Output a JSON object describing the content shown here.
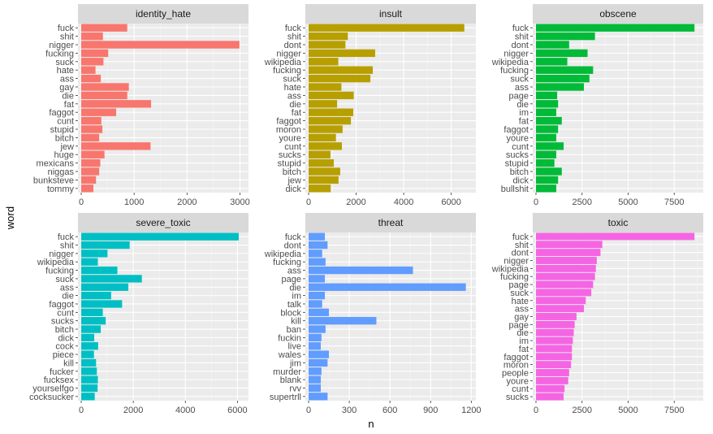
{
  "chart_data": {
    "type": "bar",
    "orientation": "horizontal",
    "xlabel": "n",
    "ylabel": "word",
    "panel_background": "#ebebeb",
    "strip_background": "#d9d9d9",
    "grid": "on",
    "panels": [
      {
        "facet": "identity_hate",
        "color": "#F8766D",
        "xlim": [
          0,
          3100
        ],
        "xticks": [
          0,
          1000,
          2000,
          3000
        ],
        "categories": [
          "fuck",
          "shit",
          "nigger",
          "fucking",
          "suck",
          "hate",
          "ass",
          "gay",
          "die",
          "fat",
          "faggot",
          "cunt",
          "stupid",
          "bitch",
          "jew",
          "huge",
          "mexicans",
          "niggas",
          "bunksteve",
          "tommy"
        ],
        "values": [
          870,
          410,
          2990,
          510,
          420,
          270,
          370,
          900,
          870,
          1320,
          660,
          380,
          400,
          340,
          1310,
          440,
          360,
          340,
          280,
          230
        ]
      },
      {
        "facet": "insult",
        "color": "#B79F00",
        "xlim": [
          0,
          6900
        ],
        "xticks": [
          0,
          2000,
          4000,
          6000
        ],
        "categories": [
          "fuck",
          "shit",
          "dont",
          "nigger",
          "wikipedia",
          "fucking",
          "suck",
          "hate",
          "ass",
          "die",
          "fat",
          "faggot",
          "moron",
          "youre",
          "cunt",
          "sucks",
          "stupid",
          "bitch",
          "jew",
          "dick"
        ],
        "values": [
          6550,
          1650,
          1550,
          2800,
          1250,
          2700,
          2600,
          1380,
          1900,
          1200,
          1880,
          1780,
          1430,
          1150,
          1400,
          920,
          1060,
          1330,
          1260,
          930
        ]
      },
      {
        "facet": "obscene",
        "color": "#00BA38",
        "xlim": [
          0,
          8900
        ],
        "xticks": [
          0,
          2500,
          5000,
          7500
        ],
        "categories": [
          "fuck",
          "shit",
          "dont",
          "nigger",
          "wikipedia",
          "fucking",
          "suck",
          "ass",
          "page",
          "die",
          "im",
          "fat",
          "faggot",
          "youre",
          "cunt",
          "sucks",
          "stupid",
          "bitch",
          "dick",
          "bullshit"
        ],
        "values": [
          8600,
          3200,
          1800,
          2800,
          1700,
          3100,
          2900,
          2600,
          1150,
          1200,
          1100,
          1400,
          1200,
          1100,
          1500,
          1100,
          1000,
          1400,
          1200,
          1100
        ]
      },
      {
        "facet": "severe_toxic",
        "color": "#00BFC4",
        "xlim": [
          0,
          6300
        ],
        "xticks": [
          0,
          2000,
          4000,
          6000
        ],
        "categories": [
          "fuck",
          "shit",
          "nigger",
          "wikipedia",
          "fucking",
          "suck",
          "ass",
          "die",
          "faggot",
          "cunt",
          "sucks",
          "bitch",
          "dick",
          "cock",
          "piece",
          "kill",
          "fucker",
          "fucksex",
          "yourselfgo",
          "cocksucker"
        ],
        "values": [
          6050,
          1860,
          1010,
          640,
          1390,
          2330,
          1810,
          1150,
          1570,
          830,
          940,
          750,
          500,
          650,
          490,
          570,
          600,
          640,
          630,
          520
        ]
      },
      {
        "facet": "threat",
        "color": "#619CFF",
        "xlim": [
          0,
          1210
        ],
        "xticks": [
          0,
          300,
          600,
          900,
          1200
        ],
        "categories": [
          "fuck",
          "dont",
          "wikipedia",
          "fucking",
          "ass",
          "page",
          "die",
          "im",
          "talk",
          "block",
          "kill",
          "ban",
          "fuckin",
          "live",
          "wales",
          "jim",
          "murder",
          "blank",
          "rvv",
          "supertrll"
        ],
        "values": [
          120,
          140,
          100,
          125,
          770,
          120,
          1160,
          120,
          100,
          150,
          500,
          125,
          95,
          90,
          150,
          140,
          95,
          90,
          90,
          140
        ]
      },
      {
        "facet": "toxic",
        "color": "#F564E3",
        "xlim": [
          0,
          8900
        ],
        "xticks": [
          0,
          2500,
          5000,
          7500
        ],
        "categories": [
          "fuck",
          "shit",
          "dont",
          "nigger",
          "wikipedia",
          "fucking",
          "page",
          "suck",
          "hate",
          "ass",
          "gay",
          "page",
          "die",
          "im",
          "fat",
          "faggot",
          "moron",
          "people",
          "youre",
          "cunt",
          "sucks"
        ],
        "values": [
          8600,
          3600,
          3500,
          3300,
          3250,
          3200,
          3100,
          3000,
          2700,
          2600,
          2200,
          2100,
          2050,
          2000,
          1950,
          1950,
          1900,
          1800,
          1750,
          1550,
          1500
        ]
      }
    ]
  }
}
